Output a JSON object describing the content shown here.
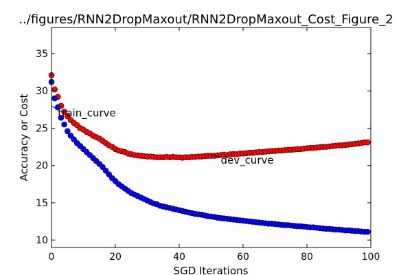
{
  "chart_data": {
    "type": "scatter",
    "title": "../figures/RNN2DropMaxout/RNN2DropMaxout_Cost_Figure_2",
    "xlabel": "SGD Iterations",
    "ylabel": "Accuracy or Cost",
    "xlim": [
      0,
      100
    ],
    "ylim": [
      9,
      38.5
    ],
    "xticks": [
      "0",
      "20",
      "40",
      "60",
      "80",
      "100"
    ],
    "yticks": [
      "10",
      "15",
      "20",
      "25",
      "30",
      "35"
    ],
    "grid": false,
    "series": [
      {
        "color": "#ff0000",
        "x": [
          0,
          1,
          2,
          3,
          4,
          5,
          6,
          7,
          8,
          9,
          10,
          11,
          12,
          13,
          14,
          15,
          16,
          17,
          18,
          19,
          20,
          21,
          22,
          23,
          24,
          25,
          26,
          27,
          28,
          29,
          30,
          31,
          32,
          33,
          34,
          35,
          36,
          37,
          38,
          39,
          40,
          41,
          42,
          43,
          44,
          45,
          46,
          47,
          48,
          49,
          50,
          51,
          52,
          53,
          54,
          55,
          56,
          57,
          58,
          59,
          60,
          61,
          62,
          63,
          64,
          65,
          66,
          67,
          68,
          69,
          70,
          71,
          72,
          73,
          74,
          75,
          76,
          77,
          78,
          79,
          80,
          81,
          82,
          83,
          84,
          85,
          86,
          87,
          88,
          89,
          90,
          91,
          92,
          93,
          94,
          95,
          96,
          97,
          98,
          99
        ],
        "values": [
          32.1,
          30.2,
          29.2,
          28.0,
          27.2,
          26.6,
          26.1,
          25.7,
          25.4,
          25.0,
          24.8,
          24.5,
          24.3,
          24.0,
          23.8,
          23.6,
          23.3,
          23.0,
          22.7,
          22.5,
          22.2,
          22.0,
          21.9,
          21.8,
          21.6,
          21.5,
          21.4,
          21.35,
          21.3,
          21.25,
          21.2,
          21.2,
          21.15,
          21.1,
          21.1,
          21.1,
          21.15,
          21.1,
          21.15,
          21.1,
          21.1,
          21.05,
          21.1,
          21.1,
          21.15,
          21.15,
          21.2,
          21.2,
          21.25,
          21.3,
          21.3,
          21.3,
          21.35,
          21.4,
          21.45,
          21.4,
          21.5,
          21.55,
          21.5,
          21.6,
          21.6,
          21.65,
          21.7,
          21.7,
          21.75,
          21.8,
          21.8,
          21.85,
          21.9,
          21.95,
          21.95,
          22.0,
          22.0,
          22.05,
          22.1,
          22.1,
          22.15,
          22.2,
          22.2,
          22.25,
          22.3,
          22.35,
          22.35,
          22.4,
          22.45,
          22.5,
          22.5,
          22.55,
          22.6,
          22.65,
          22.7,
          22.7,
          22.75,
          22.8,
          22.85,
          22.9,
          22.95,
          23.0,
          23.1,
          23.1
        ]
      },
      {
        "color": "#0000ff",
        "x": [
          0,
          1,
          2,
          3,
          4,
          5,
          6,
          7,
          8,
          9,
          10,
          11,
          12,
          13,
          14,
          15,
          16,
          17,
          18,
          19,
          20,
          21,
          22,
          23,
          24,
          25,
          26,
          27,
          28,
          29,
          30,
          31,
          32,
          33,
          34,
          35,
          36,
          37,
          38,
          39,
          40,
          41,
          42,
          43,
          44,
          45,
          46,
          47,
          48,
          49,
          50,
          51,
          52,
          53,
          54,
          55,
          56,
          57,
          58,
          59,
          60,
          61,
          62,
          63,
          64,
          65,
          66,
          67,
          68,
          69,
          70,
          71,
          72,
          73,
          74,
          75,
          76,
          77,
          78,
          79,
          80,
          81,
          82,
          83,
          84,
          85,
          86,
          87,
          88,
          89,
          90,
          91,
          92,
          93,
          94,
          95,
          96,
          97,
          98,
          99
        ],
        "values": [
          31.2,
          29.0,
          27.8,
          26.4,
          25.5,
          24.6,
          24.0,
          23.5,
          23.0,
          22.6,
          22.2,
          21.8,
          21.4,
          21.0,
          20.6,
          20.2,
          19.8,
          19.3,
          18.8,
          18.3,
          17.9,
          17.5,
          17.2,
          16.9,
          16.6,
          16.3,
          16.1,
          15.9,
          15.7,
          15.5,
          15.3,
          15.1,
          14.9,
          14.8,
          14.6,
          14.5,
          14.4,
          14.3,
          14.2,
          14.1,
          14.0,
          13.9,
          13.8,
          13.7,
          13.6,
          13.5,
          13.45,
          13.4,
          13.3,
          13.2,
          13.15,
          13.1,
          13.0,
          12.95,
          12.9,
          12.85,
          12.8,
          12.75,
          12.7,
          12.65,
          12.6,
          12.55,
          12.5,
          12.45,
          12.4,
          12.35,
          12.3,
          12.25,
          12.2,
          12.2,
          12.15,
          12.1,
          12.05,
          12.0,
          12.0,
          11.95,
          11.9,
          11.85,
          11.85,
          11.8,
          11.75,
          11.7,
          11.7,
          11.65,
          11.6,
          11.55,
          11.5,
          11.5,
          11.45,
          11.4,
          11.4,
          11.35,
          11.3,
          11.3,
          11.25,
          11.2,
          11.2,
          11.15,
          11.1,
          11.1
        ]
      }
    ],
    "annotations": [
      {
        "text": "train_curve",
        "arrow_from": [
          2,
          27.0
        ],
        "arrow_to": [
          0,
          28.0
        ]
      },
      {
        "text": "dev_curve",
        "arrow_from": [
          53,
          20.7
        ],
        "arrow_to": [
          50,
          21.4
        ]
      }
    ]
  }
}
